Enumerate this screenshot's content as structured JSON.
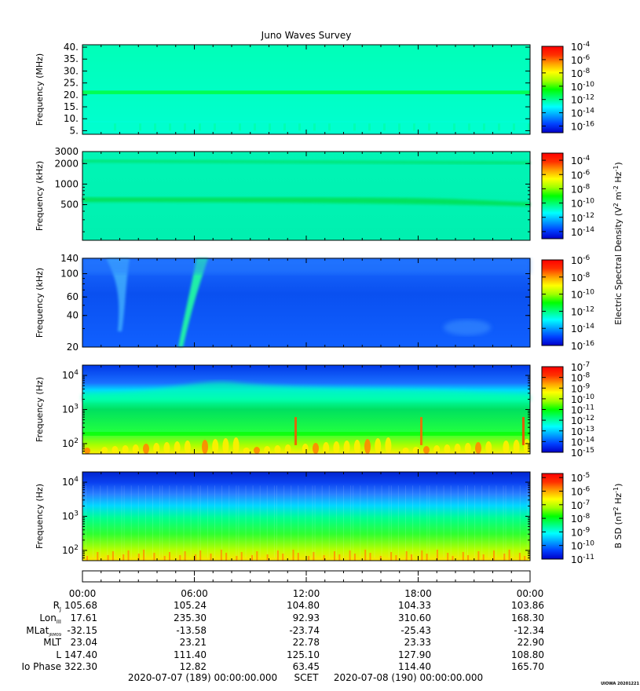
{
  "title": "Juno Waves Survey",
  "credit": "UIOWA 20201221",
  "colors": {
    "scale": [
      "#0000c8",
      "#0040ff",
      "#00a0ff",
      "#00ffff",
      "#00ff80",
      "#00ff00",
      "#a0ff00",
      "#ffff00",
      "#ffa000",
      "#ff3000",
      "#ff0000"
    ]
  },
  "chart_data": [
    {
      "type": "heatmap",
      "name": "panel-1",
      "ylabel": "Frequency (MHz)",
      "yscale": "linear",
      "ylim": [
        3.5,
        41
      ],
      "yticks": [
        {
          "v": 5,
          "label": "5."
        },
        {
          "v": 10,
          "label": "10."
        },
        {
          "v": 15,
          "label": "15."
        },
        {
          "v": 20,
          "label": "20."
        },
        {
          "v": 25,
          "label": "25."
        },
        {
          "v": 30,
          "label": "30."
        },
        {
          "v": 35,
          "label": "35."
        },
        {
          "v": 40,
          "label": "40."
        }
      ],
      "colorbar": {
        "ticks": [
          {
            "exp": "-4"
          },
          {
            "exp": "-6"
          },
          {
            "exp": "-8"
          },
          {
            "exp": "-10"
          },
          {
            "exp": "-12"
          },
          {
            "exp": "-14"
          },
          {
            "exp": "-16"
          }
        ],
        "range_exp": [
          -17,
          -4
        ]
      }
    },
    {
      "type": "heatmap",
      "name": "panel-2",
      "ylabel": "Frequency (kHz)",
      "yscale": "log",
      "ylim": [
        150,
        3000
      ],
      "yticks": [
        {
          "v": 500,
          "label": "500"
        },
        {
          "v": 1000,
          "label": "1000"
        },
        {
          "v": 2000,
          "label": "2000"
        },
        {
          "v": 3000,
          "label": "3000"
        }
      ],
      "colorbar": {
        "ticks": [
          {
            "exp": "-4"
          },
          {
            "exp": "-6"
          },
          {
            "exp": "-8"
          },
          {
            "exp": "-10"
          },
          {
            "exp": "-12"
          },
          {
            "exp": "-14"
          }
        ],
        "range_exp": [
          -15,
          -3
        ]
      }
    },
    {
      "type": "heatmap",
      "name": "panel-3",
      "ylabel": "Frequency (kHz)",
      "yscale": "log",
      "ylim": [
        20,
        140
      ],
      "yticks": [
        {
          "v": 20,
          "label": "20"
        },
        {
          "v": 40,
          "label": "40"
        },
        {
          "v": 60,
          "label": "60"
        },
        {
          "v": 100,
          "label": "100"
        },
        {
          "v": 140,
          "label": "140"
        }
      ],
      "colorbar": {
        "ticks": [
          {
            "exp": "-6"
          },
          {
            "exp": "-8"
          },
          {
            "exp": "-10"
          },
          {
            "exp": "-12"
          },
          {
            "exp": "-14"
          },
          {
            "exp": "-16"
          }
        ],
        "range_exp": [
          -16,
          -6
        ]
      }
    },
    {
      "type": "heatmap",
      "name": "panel-4",
      "ylabel": "Frequency (Hz)",
      "yscale": "log",
      "ylim": [
        50,
        20000
      ],
      "yticks": [
        {
          "v": 100,
          "base": "10",
          "exp": "2"
        },
        {
          "v": 1000,
          "base": "10",
          "exp": "3"
        },
        {
          "v": 10000,
          "base": "10",
          "exp": "4"
        }
      ],
      "colorbar": {
        "ticks": [
          {
            "exp": "-7"
          },
          {
            "exp": "-8"
          },
          {
            "exp": "-9"
          },
          {
            "exp": "-10"
          },
          {
            "exp": "-11"
          },
          {
            "exp": "-12"
          },
          {
            "exp": "-13"
          },
          {
            "exp": "-14"
          },
          {
            "exp": "-15"
          }
        ],
        "range_exp": [
          -15,
          -7
        ]
      }
    },
    {
      "type": "heatmap",
      "name": "panel-5",
      "ylabel": "Frequency (Hz)",
      "yscale": "log",
      "ylim": [
        50,
        20000
      ],
      "yticks": [
        {
          "v": 100,
          "base": "10",
          "exp": "2"
        },
        {
          "v": 1000,
          "base": "10",
          "exp": "3"
        },
        {
          "v": 10000,
          "base": "10",
          "exp": "4"
        }
      ],
      "colorbar": {
        "ticks": [
          {
            "exp": "-5"
          },
          {
            "exp": "-6"
          },
          {
            "exp": "-7"
          },
          {
            "exp": "-8"
          },
          {
            "exp": "-9"
          },
          {
            "exp": "-10"
          },
          {
            "exp": "-11"
          }
        ],
        "range_exp": [
          -11,
          -4.7
        ]
      }
    }
  ],
  "cbar_base": "10",
  "cbar_label_e": {
    "a": "Electric Spectral Density (V",
    "b": "2",
    "c": " m",
    "d": "-2",
    "e": " Hz",
    "f": "-1",
    "g": ")"
  },
  "cbar_label_b": {
    "a": "B SD (nT",
    "b": "2",
    "c": " Hz",
    "d": "-1",
    "e": ")"
  },
  "time_labels": [
    "00:00",
    "06:00",
    "12:00",
    "18:00",
    "00:00"
  ],
  "ephemeris": [
    {
      "label": "R",
      "sub": "J",
      "values": [
        "105.68",
        "105.24",
        "104.80",
        "104.33",
        "103.86"
      ]
    },
    {
      "label": "Lon",
      "sub": "III",
      "values": [
        "17.61",
        "235.30",
        "92.93",
        "310.60",
        "168.30"
      ]
    },
    {
      "label": "MLat",
      "sub": "JRM09",
      "values": [
        "-32.15",
        "-13.58",
        "-23.74",
        "-25.43",
        "-12.34"
      ]
    },
    {
      "label": "MLT",
      "sub": "",
      "values": [
        "23.04",
        "23.21",
        "22.78",
        "23.33",
        "22.90"
      ]
    },
    {
      "label": "L",
      "sub": "",
      "values": [
        "147.40",
        "111.40",
        "125.10",
        "127.90",
        "108.80"
      ]
    },
    {
      "label": "Io Phase",
      "sub": "",
      "values": [
        "322.30",
        "12.82",
        "63.45",
        "114.40",
        "165.70"
      ]
    }
  ],
  "footer": {
    "start": "2020-07-07 (189) 00:00:00.000",
    "scet": "SCET",
    "end": "2020-07-08 (190) 00:00:00.000"
  }
}
